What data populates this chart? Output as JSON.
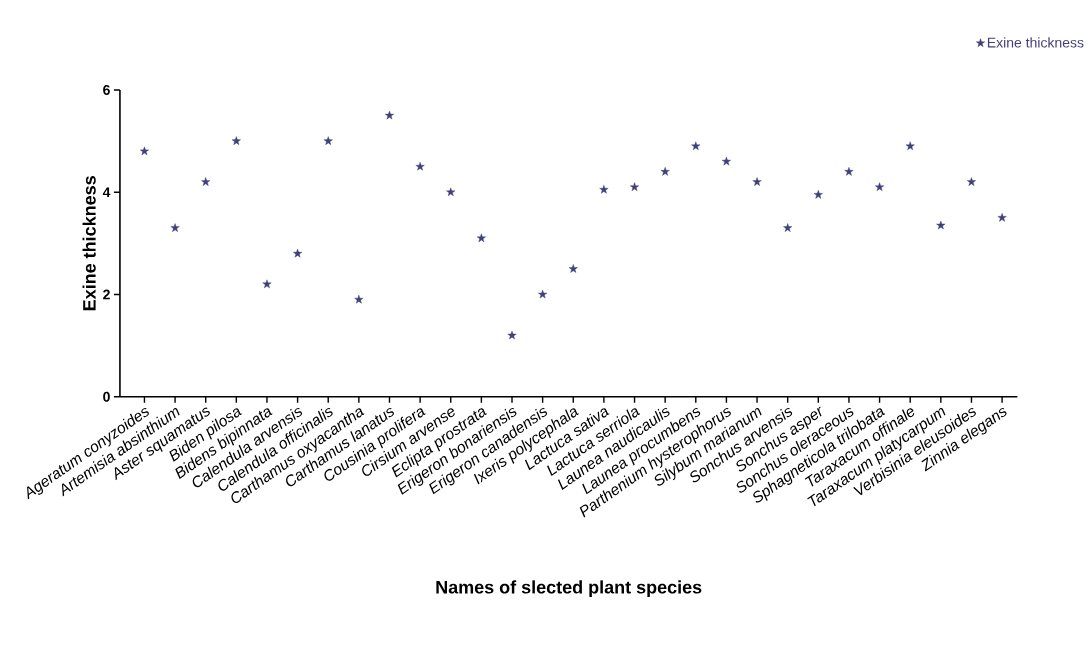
{
  "chart_data": {
    "type": "scatter",
    "xlabel": "Names of slected plant species",
    "ylabel": "Exine thickness",
    "categories": [
      "Ageratum conyzoides",
      "Artemisia absinthium",
      "Aster squamatus",
      "Biden pilosa",
      "Bidens bipinnata",
      "Calendula arvensis",
      "Calendula officinalis",
      "Carthamus oxyacantha",
      "Carthamus lanatus",
      "Cousinia prolifera",
      "Cirsium arvense",
      "Eclipta prostrata",
      "Erigeron bonariensis",
      "Erigeron canadensis",
      "Ixeris polycephala",
      "Lactuca sativa",
      "Lactuca serriola",
      "Launea naudicaulis",
      "Launea procumbens",
      "Parthenium hysterophorus",
      "Silybum marianum",
      "Sonchus arvensis",
      "Sonchus asper",
      "Sonchus oleraceous",
      "Sphagneticola trilobata",
      "Taraxacum offinale",
      "Taraxacum platycarpum",
      "Verbisinia eleusoides",
      "Zinnia elegans"
    ],
    "series": [
      {
        "name": "Exine thickness",
        "color": "#40407a",
        "values": [
          4.8,
          3.3,
          4.2,
          5.0,
          2.2,
          2.8,
          5.0,
          1.9,
          5.5,
          4.5,
          4.0,
          3.1,
          1.2,
          2.0,
          2.5,
          4.05,
          4.1,
          4.4,
          4.9,
          4.6,
          4.2,
          3.3,
          3.95,
          4.4,
          4.1,
          4.9,
          3.35,
          4.2,
          3.5
        ]
      }
    ],
    "ylim": [
      0,
      6
    ],
    "yticks": [
      0,
      2,
      4,
      6
    ],
    "grid": false,
    "legend": "top right",
    "marker": "star"
  }
}
